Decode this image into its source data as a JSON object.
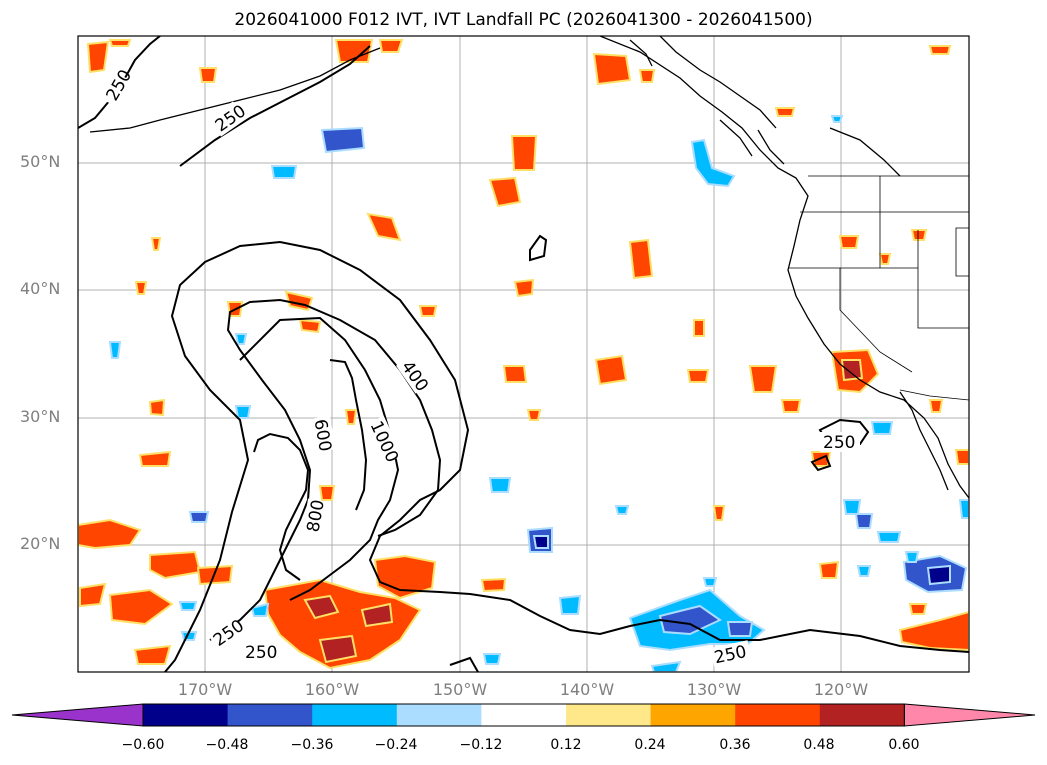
{
  "title": "2026041000 F012 IVT, IVT Landfall PC (2026041300 - 2026041500)",
  "lat_labels": [
    "50°N",
    "40°N",
    "30°N",
    "20°N"
  ],
  "lon_labels": [
    "170°W",
    "160°W",
    "150°W",
    "140°W",
    "130°W",
    "120°W"
  ],
  "contour_labels": [
    "250",
    "250",
    "250",
    "250",
    "250",
    "250",
    "400",
    "600",
    "800",
    "1000"
  ],
  "colorbar": {
    "tick_labels": [
      "−0.60",
      "−0.48",
      "−0.36",
      "−0.24",
      "−0.12",
      "0.12",
      "0.24",
      "0.36",
      "0.48",
      "0.60"
    ],
    "colors": [
      "#9933cc",
      "#00008b",
      "#3355cc",
      "#00bbff",
      "#aaddff",
      "#ffffff",
      "#ffe88a",
      "#ffa500",
      "#ff4500",
      "#b22222",
      "#ff88aa"
    ]
  }
}
